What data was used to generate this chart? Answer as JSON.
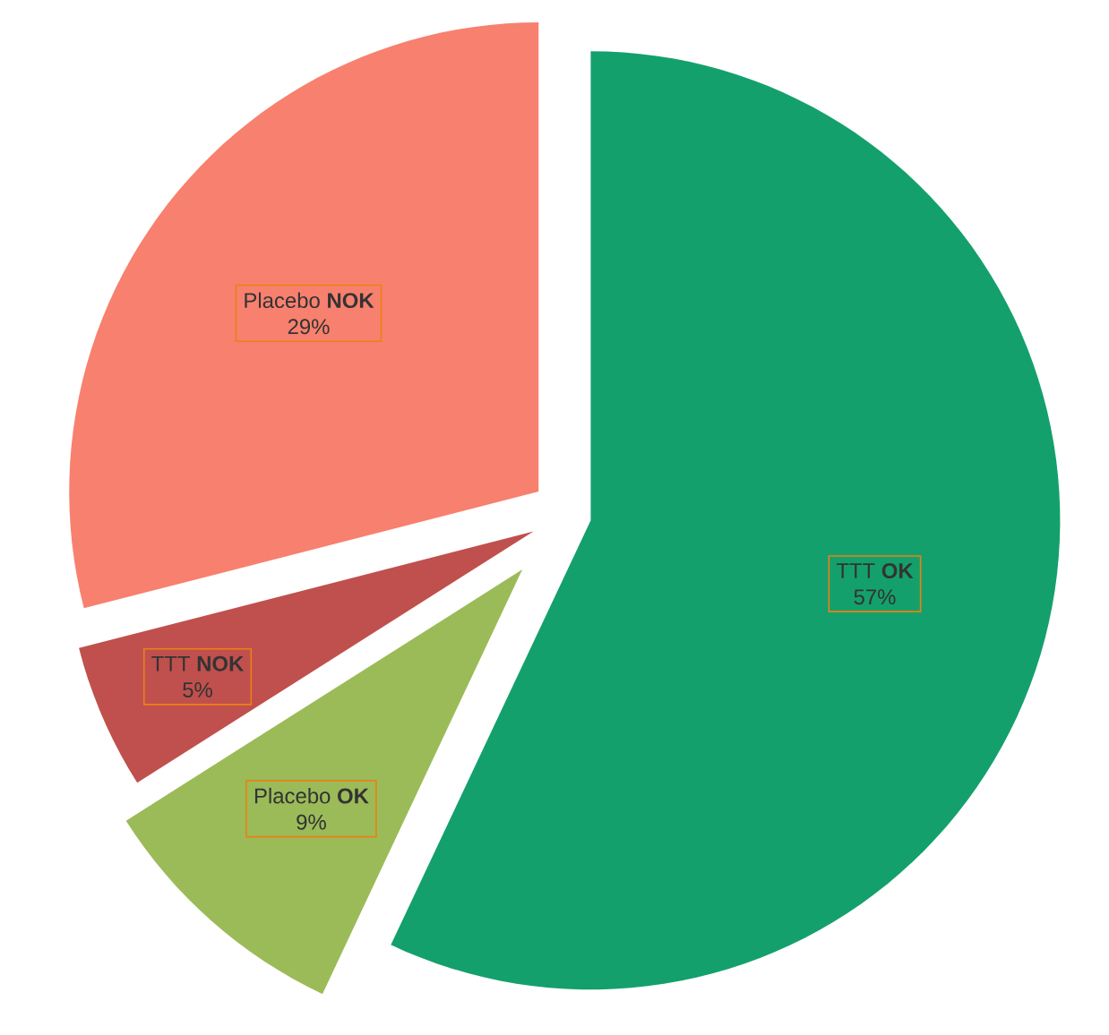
{
  "chart_data": {
    "type": "pie",
    "categories": [
      "TTT **OK**",
      "Placebo **OK**",
      "TTT **NOK**",
      "Placebo **NOK**"
    ],
    "values": [
      57,
      9,
      5,
      29
    ],
    "colors": [
      "#14a06c",
      "#9bbb59",
      "#c0504d",
      "#f8806e"
    ],
    "value_labels": [
      "57%",
      "9%",
      "5%",
      "29%"
    ],
    "data_labels": true
  }
}
